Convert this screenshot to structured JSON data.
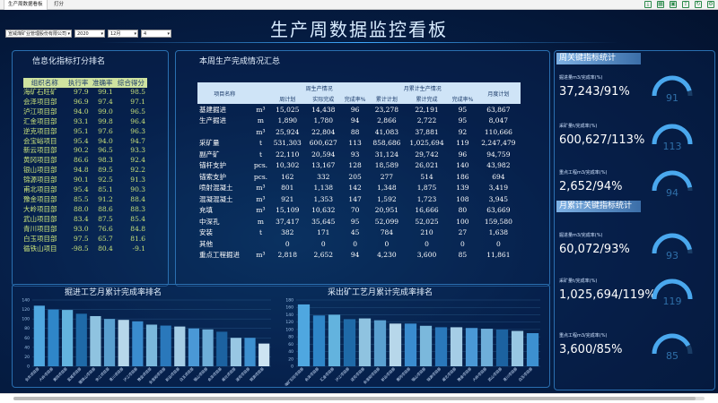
{
  "tabs": [
    {
      "label": "生产周数据看板",
      "active": true
    },
    {
      "label": "打分",
      "active": false
    }
  ],
  "toolbar_icons": [
    "export-icon",
    "grid-icon",
    "layout-icon",
    "share-icon",
    "reload-icon",
    "settings-icon"
  ],
  "title": "生产周数据监控看板",
  "filters": {
    "company": "宣威煤矿业管理股份有限公司",
    "year": "2020",
    "month": "12月",
    "week": "4"
  },
  "left_panel": {
    "title": "信息化指标打分排名",
    "headers": [
      "组织名称",
      "执行率",
      "准确率",
      "综合得分"
    ],
    "rows": [
      [
        "海矿石旺矿",
        "97.9",
        "99.1",
        "98.5"
      ],
      [
        "会泽项目部",
        "96.9",
        "97.4",
        "97.1"
      ],
      [
        "泸江项目部",
        "94.0",
        "99.0",
        "96.5"
      ],
      [
        "汇金项目部",
        "93.1",
        "99.8",
        "96.4"
      ],
      [
        "逆克项目部",
        "95.1",
        "97.6",
        "96.3"
      ],
      [
        "会宝峪项目",
        "95.4",
        "94.0",
        "94.7"
      ],
      [
        "新云项目部",
        "90.2",
        "96.5",
        "93.3"
      ],
      [
        "黄冈项目部",
        "86.6",
        "98.3",
        "92.4"
      ],
      [
        "银山项目部",
        "94.8",
        "89.5",
        "92.2"
      ],
      [
        "锦源项目部",
        "90.1",
        "92.5",
        "91.3"
      ],
      [
        "甫北项目部",
        "95.4",
        "85.1",
        "90.3"
      ],
      [
        "豫金项目部",
        "85.5",
        "91.2",
        "88.4"
      ],
      [
        "大岭项目部",
        "88.0",
        "88.6",
        "88.3"
      ],
      [
        "武山项目部",
        "83.4",
        "87.5",
        "85.4"
      ],
      [
        "青川项目部",
        "93.0",
        "76.6",
        "84.8"
      ],
      [
        "白玉项目部",
        "97.5",
        "65.7",
        "81.6"
      ],
      [
        "循铁山项目",
        "-98.5",
        "80.4",
        "-9.1"
      ]
    ]
  },
  "summary": {
    "title": "本周生产完成情况汇总",
    "group_headers": [
      "周生产情况",
      "月累计生产情况"
    ],
    "headers": [
      "项目名称",
      "",
      "周计划",
      "实际完成",
      "完成率%",
      "累计计划",
      "累计完成",
      "完成率%",
      "月度计划"
    ],
    "rows": [
      [
        "基建掘进",
        "m³",
        "15,025",
        "14,438",
        "96",
        "23,278",
        "22,191",
        "95",
        "63,867"
      ],
      [
        "生产掘进",
        "m",
        "1,890",
        "1,780",
        "94",
        "2,866",
        "2,722",
        "95",
        "8,047"
      ],
      [
        "",
        "m³",
        "25,924",
        "22,804",
        "88",
        "41,083",
        "37,881",
        "92",
        "110,666"
      ],
      [
        "采矿量",
        "t",
        "531,303",
        "600,627",
        "113",
        "858,686",
        "1,025,694",
        "119",
        "2,247,479"
      ],
      [
        "副产矿",
        "t",
        "22,110",
        "20,594",
        "93",
        "31,124",
        "29,742",
        "96",
        "94,759"
      ],
      [
        "锚杆支护",
        "pcs.",
        "10,302",
        "13,167",
        "128",
        "18,589",
        "26,021",
        "140",
        "43,982"
      ],
      [
        "锚索支护",
        "pcs.",
        "162",
        "332",
        "205",
        "277",
        "514",
        "186",
        "694"
      ],
      [
        "喷射混凝土",
        "m³",
        "801",
        "1,138",
        "142",
        "1,348",
        "1,875",
        "139",
        "3,419"
      ],
      [
        "混凝混凝土",
        "m³",
        "921",
        "1,353",
        "147",
        "1,592",
        "1,723",
        "108",
        "3,945"
      ],
      [
        "充填",
        "m³",
        "15,109",
        "10,632",
        "70",
        "20,951",
        "16,666",
        "80",
        "63,669"
      ],
      [
        "中深孔",
        "m",
        "37,417",
        "35,645",
        "95",
        "52,099",
        "52,025",
        "100",
        "159,580"
      ],
      [
        "安装",
        "t",
        "382",
        "171",
        "45",
        "784",
        "210",
        "27",
        "1,638"
      ],
      [
        "其他",
        "",
        "0",
        "0",
        "0",
        "0",
        "0",
        "0",
        "0"
      ],
      [
        "重点工程掘进",
        "m³",
        "2,818",
        "2,652",
        "94",
        "4,230",
        "3,600",
        "85",
        "11,861"
      ]
    ]
  },
  "chart_left": {
    "title": "掘进工艺月累计完成率排名",
    "chart_data": {
      "type": "bar",
      "categories": [
        "会东项目部",
        "大岭项目部",
        "黄冈项目部",
        "宣威项目部",
        "循铁山项目部",
        "余江项目部",
        "青川项目部",
        "泸江项目部",
        "豫金项目部",
        "会宝峪项目部",
        "新云项目部",
        "白玉项目部",
        "银山项目部",
        "会泽项目部",
        "甫北项目部",
        "遂克项目部",
        "锦源项目部"
      ],
      "values": [
        128,
        120,
        119,
        111,
        106,
        100,
        98,
        95,
        88,
        86,
        84,
        80,
        78,
        73,
        60,
        60,
        48
      ],
      "ylim": [
        0,
        140
      ],
      "yticks": [
        0,
        20,
        40,
        60,
        80,
        100,
        120,
        140
      ]
    }
  },
  "chart_right": {
    "title": "采出矿工艺月累计完成率排名",
    "chart_data": {
      "type": "bar",
      "categories": [
        "海矿石旺项目部",
        "会泽项目部",
        "汇金项目部",
        "泸江项目部",
        "逆克项目部",
        "会宝峪项目部",
        "新云项目部",
        "黄冈项目部",
        "银山项目部",
        "锦源项目部",
        "甫北项目部",
        "豫金项目部",
        "大岭项目部",
        "武山项目部",
        "青川项目部",
        "白玉项目部"
      ],
      "values": [
        168,
        138,
        140,
        128,
        130,
        125,
        116,
        116,
        110,
        106,
        106,
        104,
        102,
        100,
        96,
        90
      ],
      "ylim": [
        0,
        180
      ],
      "yticks": [
        0,
        20,
        40,
        60,
        80,
        100,
        120,
        140,
        160,
        180
      ]
    }
  },
  "right_panel": {
    "week_title": "周关键指标统计",
    "month_title": "月累计关键指标统计",
    "week": [
      {
        "label": "掘进量m3/完成率(%)",
        "value": "37,243/91%",
        "gauge": "91",
        "pct": 91
      },
      {
        "label": "采矿量t/完成率(%)",
        "value": "600,627/113%",
        "gauge": "113",
        "pct": 100
      },
      {
        "label": "重点工程m3/完成率(%)",
        "value": "2,652/94%",
        "gauge": "94",
        "pct": 94
      }
    ],
    "month": [
      {
        "label": "掘进量m3/完成率(%)",
        "value": "60,072/93%",
        "gauge": "93",
        "pct": 93
      },
      {
        "label": "采矿量t/完成率(%)",
        "value": "1,025,694/119%",
        "gauge": "119",
        "pct": 100
      },
      {
        "label": "重点工程m3/完成率(%)",
        "value": "3,600/85%",
        "gauge": "85",
        "pct": 85
      }
    ]
  }
}
